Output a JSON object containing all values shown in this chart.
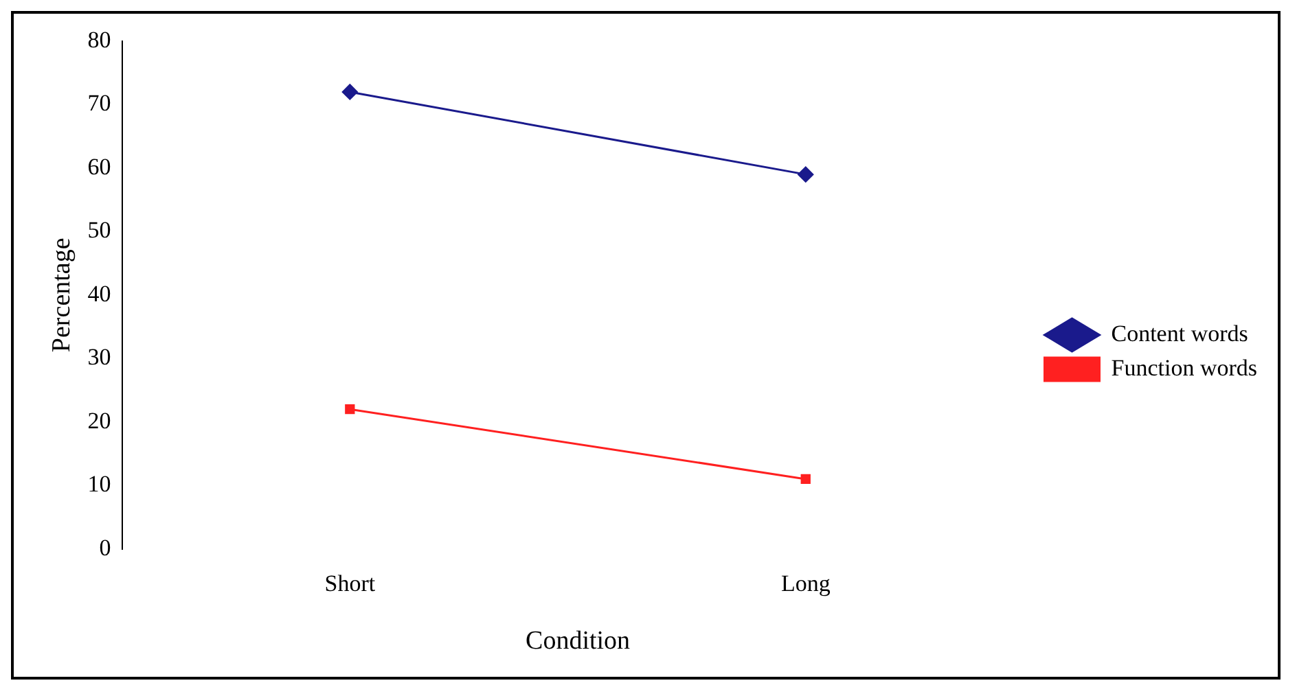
{
  "chart_data": {
    "type": "line",
    "xlabel": "Condition",
    "ylabel": "Percentage",
    "categories": [
      "Short",
      "Long"
    ],
    "series": [
      {
        "name": "Content words",
        "color": "#1a1a8c",
        "values": [
          72,
          59
        ],
        "marker": "diamond"
      },
      {
        "name": "Function words",
        "color": "#ff2020",
        "values": [
          22,
          11
        ],
        "marker": "square"
      }
    ],
    "ylim": [
      0,
      80
    ],
    "yticks": [
      0,
      10,
      20,
      30,
      40,
      50,
      60,
      70,
      80
    ],
    "grid": false,
    "legend": "right",
    "line_style": "solid"
  }
}
